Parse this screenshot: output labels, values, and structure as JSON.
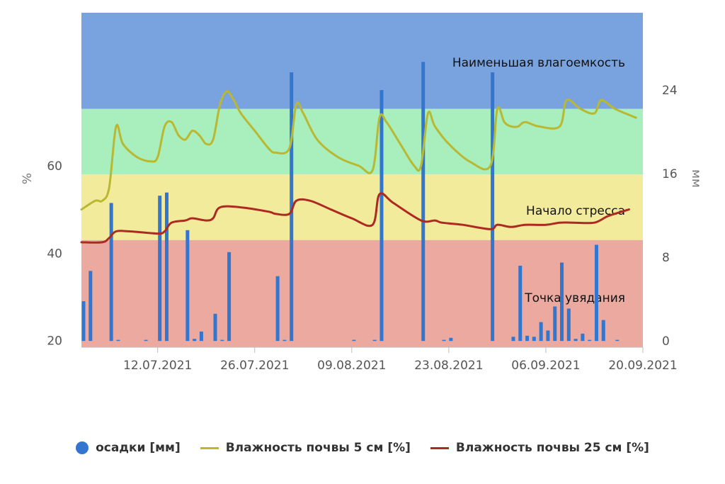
{
  "chart_data": {
    "type": "bar+line",
    "x_ticks": [
      "12.07.2021",
      "26.07.2021",
      "09.08.2021",
      "23.08.2021",
      "06.09.2021",
      "20.09.2021"
    ],
    "x_range": [
      "2021-07-01",
      "2021-09-20"
    ],
    "y_left": {
      "label": "%",
      "ticks": [
        20,
        40,
        60
      ],
      "range": [
        18.5,
        95
      ]
    },
    "y_right": {
      "label": "мм",
      "ticks": [
        0,
        8,
        16,
        24
      ],
      "range": [
        -0.6,
        31.4
      ]
    },
    "zones": [
      {
        "name": "Наименьшая влагоемкость",
        "from": 73,
        "to": 95,
        "color": "#79a3df"
      },
      {
        "name": "",
        "from": 58,
        "to": 73,
        "color": "#a8efbd"
      },
      {
        "name": "Начало стресса",
        "from": 43,
        "to": 58,
        "color": "#f3eb9c"
      },
      {
        "name": "Точка увядания",
        "from": 18.5,
        "to": 43,
        "color": "#eba99f"
      }
    ],
    "precip": {
      "name": "осадки [мм]",
      "color": "#3376cf",
      "points": [
        {
          "x": "2021-07-01",
          "y": 3.8
        },
        {
          "x": "2021-07-02",
          "y": 6.7
        },
        {
          "x": "2021-07-05",
          "y": 13.2
        },
        {
          "x": "2021-07-06",
          "y": 0.1
        },
        {
          "x": "2021-07-10",
          "y": 0.1
        },
        {
          "x": "2021-07-12",
          "y": 13.9
        },
        {
          "x": "2021-07-13",
          "y": 14.2
        },
        {
          "x": "2021-07-16",
          "y": 10.6
        },
        {
          "x": "2021-07-17",
          "y": 0.2
        },
        {
          "x": "2021-07-18",
          "y": 0.9
        },
        {
          "x": "2021-07-20",
          "y": 2.6
        },
        {
          "x": "2021-07-21",
          "y": 0.1
        },
        {
          "x": "2021-07-22",
          "y": 8.5
        },
        {
          "x": "2021-07-29",
          "y": 6.2
        },
        {
          "x": "2021-07-30",
          "y": 0.1
        },
        {
          "x": "2021-07-31",
          "y": 25.7
        },
        {
          "x": "2021-08-09",
          "y": 0.1
        },
        {
          "x": "2021-08-12",
          "y": 0.1
        },
        {
          "x": "2021-08-13",
          "y": 24.0
        },
        {
          "x": "2021-08-19",
          "y": 26.7
        },
        {
          "x": "2021-08-22",
          "y": 0.1
        },
        {
          "x": "2021-08-23",
          "y": 0.3
        },
        {
          "x": "2021-08-29",
          "y": 25.7
        },
        {
          "x": "2021-09-01",
          "y": 0.4
        },
        {
          "x": "2021-09-02",
          "y": 7.2
        },
        {
          "x": "2021-09-03",
          "y": 0.5
        },
        {
          "x": "2021-09-04",
          "y": 0.4
        },
        {
          "x": "2021-09-05",
          "y": 1.8
        },
        {
          "x": "2021-09-06",
          "y": 1.0
        },
        {
          "x": "2021-09-07",
          "y": 3.3
        },
        {
          "x": "2021-09-08",
          "y": 7.5
        },
        {
          "x": "2021-09-09",
          "y": 3.1
        },
        {
          "x": "2021-09-10",
          "y": 0.2
        },
        {
          "x": "2021-09-11",
          "y": 0.7
        },
        {
          "x": "2021-09-12",
          "y": 0.1
        },
        {
          "x": "2021-09-13",
          "y": 9.2
        },
        {
          "x": "2021-09-14",
          "y": 2.0
        },
        {
          "x": "2021-09-16",
          "y": 0.1
        }
      ]
    },
    "series": [
      {
        "name": "Влажность почвы 5 см [%]",
        "color": "#b9b832",
        "points": [
          {
            "x": "2021-07-01",
            "y": 50
          },
          {
            "x": "2021-07-03",
            "y": 52
          },
          {
            "x": "2021-07-04",
            "y": 52
          },
          {
            "x": "2021-07-05",
            "y": 55
          },
          {
            "x": "2021-07-06",
            "y": 69
          },
          {
            "x": "2021-07-07",
            "y": 65
          },
          {
            "x": "2021-07-09",
            "y": 62
          },
          {
            "x": "2021-07-11",
            "y": 61
          },
          {
            "x": "2021-07-12",
            "y": 62
          },
          {
            "x": "2021-07-13",
            "y": 69
          },
          {
            "x": "2021-07-14",
            "y": 70
          },
          {
            "x": "2021-07-15",
            "y": 67
          },
          {
            "x": "2021-07-16",
            "y": 66
          },
          {
            "x": "2021-07-17",
            "y": 68
          },
          {
            "x": "2021-07-18",
            "y": 67
          },
          {
            "x": "2021-07-19",
            "y": 65
          },
          {
            "x": "2021-07-20",
            "y": 66
          },
          {
            "x": "2021-07-21",
            "y": 74
          },
          {
            "x": "2021-07-22",
            "y": 77
          },
          {
            "x": "2021-07-23",
            "y": 75
          },
          {
            "x": "2021-07-24",
            "y": 72
          },
          {
            "x": "2021-07-26",
            "y": 68
          },
          {
            "x": "2021-07-28",
            "y": 64
          },
          {
            "x": "2021-07-29",
            "y": 63
          },
          {
            "x": "2021-07-31",
            "y": 64
          },
          {
            "x": "2021-08-01",
            "y": 74
          },
          {
            "x": "2021-08-02",
            "y": 72
          },
          {
            "x": "2021-08-04",
            "y": 66
          },
          {
            "x": "2021-08-07",
            "y": 62
          },
          {
            "x": "2021-08-10",
            "y": 60
          },
          {
            "x": "2021-08-12",
            "y": 59
          },
          {
            "x": "2021-08-13",
            "y": 71
          },
          {
            "x": "2021-08-14",
            "y": 70
          },
          {
            "x": "2021-08-16",
            "y": 65
          },
          {
            "x": "2021-08-18",
            "y": 60
          },
          {
            "x": "2021-08-19",
            "y": 60
          },
          {
            "x": "2021-08-20",
            "y": 72
          },
          {
            "x": "2021-08-21",
            "y": 69
          },
          {
            "x": "2021-08-23",
            "y": 65
          },
          {
            "x": "2021-08-26",
            "y": 61
          },
          {
            "x": "2021-08-29",
            "y": 60
          },
          {
            "x": "2021-08-30",
            "y": 73
          },
          {
            "x": "2021-08-31",
            "y": 70
          },
          {
            "x": "2021-09-01",
            "y": 69
          },
          {
            "x": "2021-09-02",
            "y": 69
          },
          {
            "x": "2021-09-03",
            "y": 70
          },
          {
            "x": "2021-09-05",
            "y": 69
          },
          {
            "x": "2021-09-08",
            "y": 69
          },
          {
            "x": "2021-09-09",
            "y": 75
          },
          {
            "x": "2021-09-11",
            "y": 73
          },
          {
            "x": "2021-09-13",
            "y": 72
          },
          {
            "x": "2021-09-14",
            "y": 75
          },
          {
            "x": "2021-09-16",
            "y": 73
          },
          {
            "x": "2021-09-19",
            "y": 71
          }
        ]
      },
      {
        "name": "Влажность почвы 25 см [%]",
        "color": "#ad2a22",
        "points": [
          {
            "x": "2021-07-01",
            "y": 42.5
          },
          {
            "x": "2021-07-04",
            "y": 42.5
          },
          {
            "x": "2021-07-05",
            "y": 43.5
          },
          {
            "x": "2021-07-06",
            "y": 45
          },
          {
            "x": "2021-07-08",
            "y": 45
          },
          {
            "x": "2021-07-12",
            "y": 44.5
          },
          {
            "x": "2021-07-13",
            "y": 45
          },
          {
            "x": "2021-07-14",
            "y": 47
          },
          {
            "x": "2021-07-16",
            "y": 47.5
          },
          {
            "x": "2021-07-17",
            "y": 48
          },
          {
            "x": "2021-07-19",
            "y": 47.5
          },
          {
            "x": "2021-07-20",
            "y": 48
          },
          {
            "x": "2021-07-21",
            "y": 50.5
          },
          {
            "x": "2021-07-24",
            "y": 50.5
          },
          {
            "x": "2021-07-28",
            "y": 49.5
          },
          {
            "x": "2021-07-29",
            "y": 49
          },
          {
            "x": "2021-07-31",
            "y": 49
          },
          {
            "x": "2021-08-01",
            "y": 52
          },
          {
            "x": "2021-08-03",
            "y": 52
          },
          {
            "x": "2021-08-06",
            "y": 50
          },
          {
            "x": "2021-08-09",
            "y": 48
          },
          {
            "x": "2021-08-12",
            "y": 46.5
          },
          {
            "x": "2021-08-13",
            "y": 53.5
          },
          {
            "x": "2021-08-15",
            "y": 51.5
          },
          {
            "x": "2021-08-19",
            "y": 47.5
          },
          {
            "x": "2021-08-21",
            "y": 47.5
          },
          {
            "x": "2021-08-22",
            "y": 47
          },
          {
            "x": "2021-08-25",
            "y": 46.5
          },
          {
            "x": "2021-08-29",
            "y": 45.5
          },
          {
            "x": "2021-08-30",
            "y": 46.5
          },
          {
            "x": "2021-09-01",
            "y": 46
          },
          {
            "x": "2021-09-03",
            "y": 46.5
          },
          {
            "x": "2021-09-06",
            "y": 46.5
          },
          {
            "x": "2021-09-08",
            "y": 47
          },
          {
            "x": "2021-09-10",
            "y": 47
          },
          {
            "x": "2021-09-13",
            "y": 47
          },
          {
            "x": "2021-09-15",
            "y": 48.5
          },
          {
            "x": "2021-09-18",
            "y": 50
          }
        ]
      }
    ]
  }
}
